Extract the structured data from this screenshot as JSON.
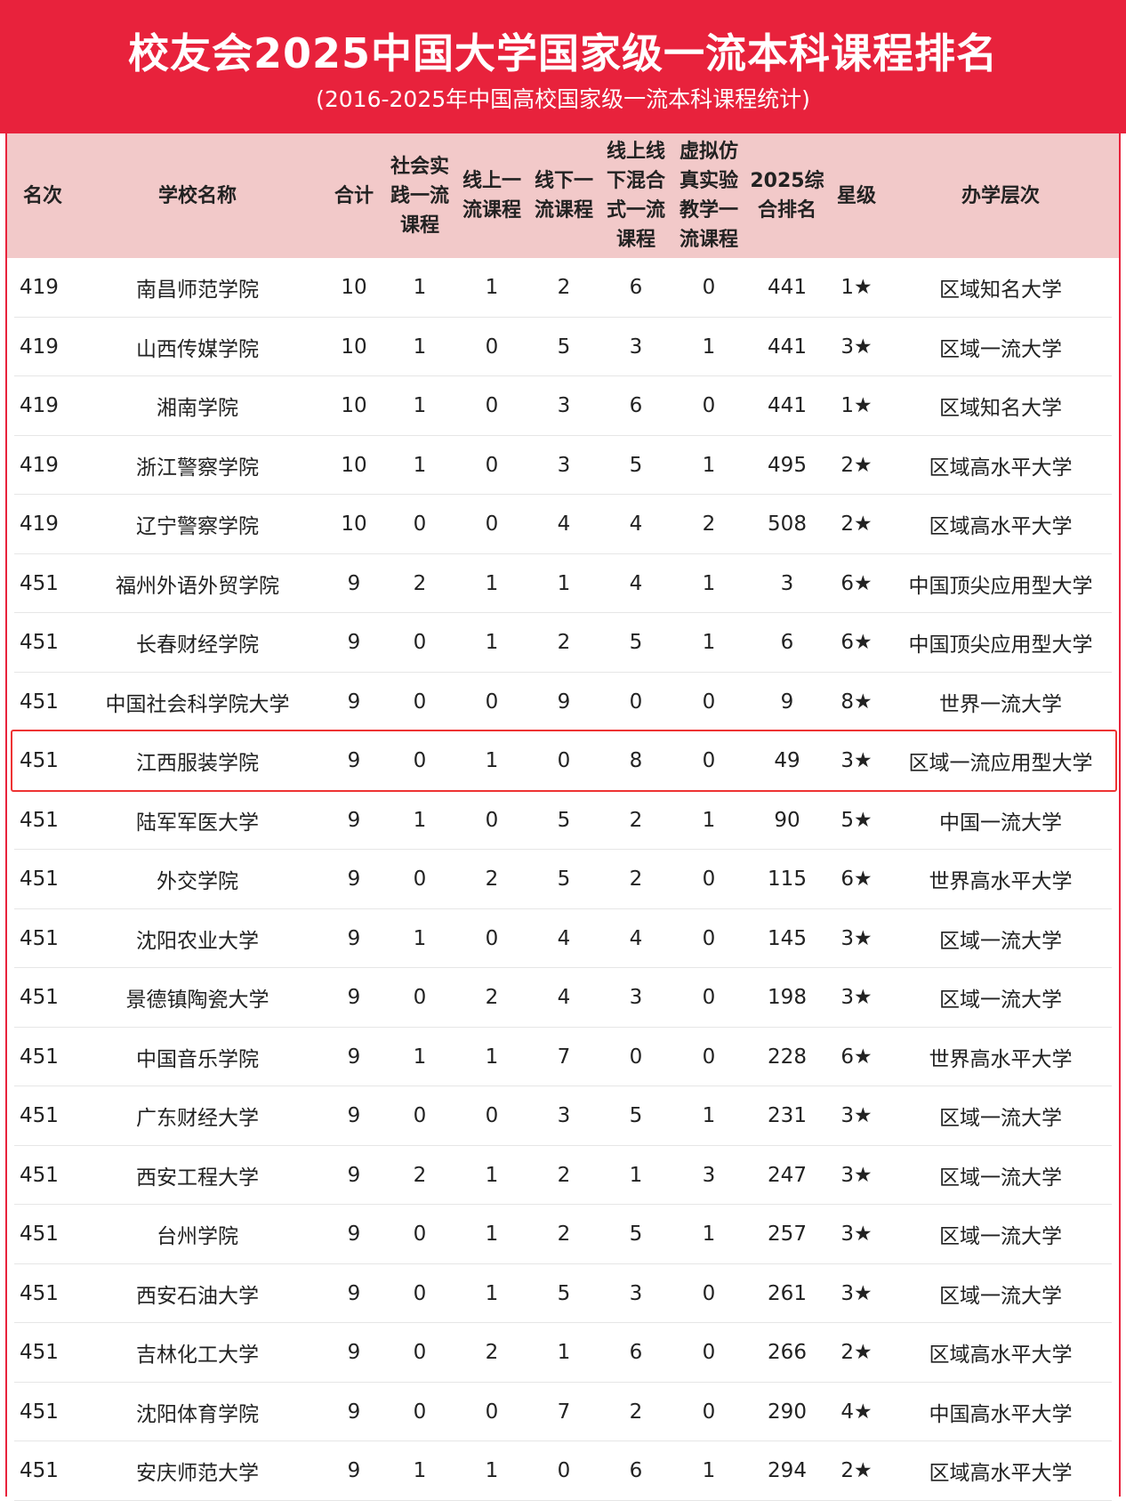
{
  "header": {
    "title": "校友会2025中国大学国家级一流本科课程排名",
    "subtitle": "(2016-2025年中国高校国家级一流本科课程统计)"
  },
  "colors": {
    "banner": "#e8223c",
    "header_row": "#f2c9c9",
    "highlight_border": "#e33333"
  },
  "columns": [
    "名次",
    "学校名称",
    "合计",
    "社会实\n践一流\n课程",
    "线上一\n流课程",
    "线下一\n流课程",
    "线上线\n下混合\n式一流\n课程",
    "虚拟仿\n真实验\n教学一\n流课程",
    "2025综\n合排名",
    "星级",
    "办学层次"
  ],
  "highlighted_row": 8,
  "rows": [
    [
      "419",
      "南昌师范学院",
      "10",
      "1",
      "1",
      "2",
      "6",
      "0",
      "441",
      "1★",
      "区域知名大学"
    ],
    [
      "419",
      "山西传媒学院",
      "10",
      "1",
      "0",
      "5",
      "3",
      "1",
      "441",
      "3★",
      "区域一流大学"
    ],
    [
      "419",
      "湘南学院",
      "10",
      "1",
      "0",
      "3",
      "6",
      "0",
      "441",
      "1★",
      "区域知名大学"
    ],
    [
      "419",
      "浙江警察学院",
      "10",
      "1",
      "0",
      "3",
      "5",
      "1",
      "495",
      "2★",
      "区域高水平大学"
    ],
    [
      "419",
      "辽宁警察学院",
      "10",
      "0",
      "0",
      "4",
      "4",
      "2",
      "508",
      "2★",
      "区域高水平大学"
    ],
    [
      "451",
      "福州外语外贸学院",
      "9",
      "2",
      "1",
      "1",
      "4",
      "1",
      "3",
      "6★",
      "中国顶尖应用型大学"
    ],
    [
      "451",
      "长春财经学院",
      "9",
      "0",
      "1",
      "2",
      "5",
      "1",
      "6",
      "6★",
      "中国顶尖应用型大学"
    ],
    [
      "451",
      "中国社会科学院大学",
      "9",
      "0",
      "0",
      "9",
      "0",
      "0",
      "9",
      "8★",
      "世界一流大学"
    ],
    [
      "451",
      "江西服装学院",
      "9",
      "0",
      "1",
      "0",
      "8",
      "0",
      "49",
      "3★",
      "区域一流应用型大学"
    ],
    [
      "451",
      "陆军军医大学",
      "9",
      "1",
      "0",
      "5",
      "2",
      "1",
      "90",
      "5★",
      "中国一流大学"
    ],
    [
      "451",
      "外交学院",
      "9",
      "0",
      "2",
      "5",
      "2",
      "0",
      "115",
      "6★",
      "世界高水平大学"
    ],
    [
      "451",
      "沈阳农业大学",
      "9",
      "1",
      "0",
      "4",
      "4",
      "0",
      "145",
      "3★",
      "区域一流大学"
    ],
    [
      "451",
      "景德镇陶瓷大学",
      "9",
      "0",
      "2",
      "4",
      "3",
      "0",
      "198",
      "3★",
      "区域一流大学"
    ],
    [
      "451",
      "中国音乐学院",
      "9",
      "1",
      "1",
      "7",
      "0",
      "0",
      "228",
      "6★",
      "世界高水平大学"
    ],
    [
      "451",
      "广东财经大学",
      "9",
      "0",
      "0",
      "3",
      "5",
      "1",
      "231",
      "3★",
      "区域一流大学"
    ],
    [
      "451",
      "西安工程大学",
      "9",
      "2",
      "1",
      "2",
      "1",
      "3",
      "247",
      "3★",
      "区域一流大学"
    ],
    [
      "451",
      "台州学院",
      "9",
      "0",
      "1",
      "2",
      "5",
      "1",
      "257",
      "3★",
      "区域一流大学"
    ],
    [
      "451",
      "西安石油大学",
      "9",
      "0",
      "1",
      "5",
      "3",
      "0",
      "261",
      "3★",
      "区域一流大学"
    ],
    [
      "451",
      "吉林化工大学",
      "9",
      "0",
      "2",
      "1",
      "6",
      "0",
      "266",
      "2★",
      "区域高水平大学"
    ],
    [
      "451",
      "沈阳体育学院",
      "9",
      "0",
      "0",
      "7",
      "2",
      "0",
      "290",
      "4★",
      "中国高水平大学"
    ],
    [
      "451",
      "安庆师范大学",
      "9",
      "1",
      "1",
      "0",
      "6",
      "1",
      "294",
      "2★",
      "区域高水平大学"
    ]
  ]
}
